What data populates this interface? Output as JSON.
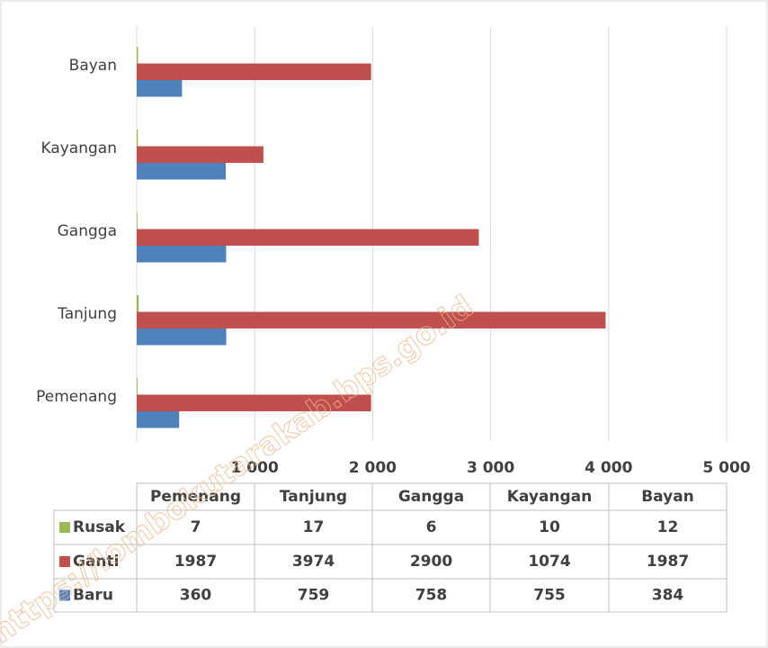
{
  "chart_data": {
    "type": "hbar",
    "categories": [
      "Pemenang",
      "Tanjung",
      "Gangga",
      "Kayangan",
      "Bayan"
    ],
    "series": [
      {
        "name": "Rusak",
        "color": "#9bbb59",
        "values": [
          7,
          17,
          6,
          10,
          12
        ]
      },
      {
        "name": "Ganti",
        "color": "#c0504d",
        "values": [
          1987,
          3974,
          2900,
          1074,
          1987
        ]
      },
      {
        "name": "Baru",
        "color": "#4f81bd",
        "values": [
          360,
          759,
          758,
          755,
          384
        ]
      }
    ],
    "xlim": [
      0,
      5000
    ],
    "xticks": [
      {
        "value": 1000,
        "label": "1 000"
      },
      {
        "value": 2000,
        "label": "2 000"
      },
      {
        "value": 3000,
        "label": "3 000"
      },
      {
        "value": 4000,
        "label": "4 000"
      },
      {
        "value": 5000,
        "label": "5 000"
      }
    ],
    "grid": true,
    "data_table": true,
    "watermark": "https://lombokutarakab.bps.go.id"
  }
}
